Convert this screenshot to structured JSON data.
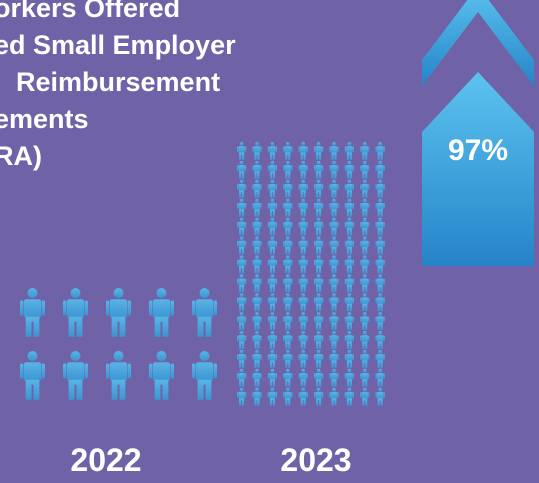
{
  "title_lines": [
    "orkers Offered",
    "ed Small Employer",
    "Reimbursement",
    "ements",
    "RA)"
  ],
  "chart_data": {
    "type": "pictograph",
    "categories": [
      "2022",
      "2023"
    ],
    "icon_counts": [
      10,
      140
    ],
    "annotation": "97%",
    "colors": {
      "background": "#6f62a7",
      "icon": "#4fa6d9",
      "arrow_light": "#5cc3ef",
      "arrow_dark": "#2584c8",
      "text": "#ffffff"
    }
  }
}
